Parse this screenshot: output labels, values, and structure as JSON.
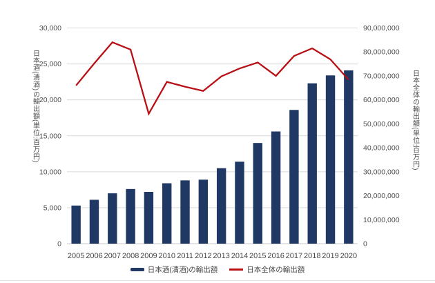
{
  "chart_data": {
    "type": "combo",
    "categories": [
      "2005",
      "2006",
      "2007",
      "2008",
      "2009",
      "2010",
      "2011",
      "2012",
      "2013",
      "2014",
      "2015",
      "2016",
      "2017",
      "2018",
      "2019",
      "2020"
    ],
    "series": [
      {
        "name": "日本酒(清酒)の輸出額",
        "type": "bar",
        "axis": "left",
        "color": "#1F3864",
        "values": [
          5300,
          6100,
          7000,
          7600,
          7200,
          8400,
          8800,
          8900,
          10500,
          11400,
          14000,
          15600,
          18600,
          22300,
          23400,
          24100
        ]
      },
      {
        "name": "日本全体の輸出額",
        "type": "line",
        "axis": "right",
        "color": "#B80F15",
        "values": [
          66000000,
          75200000,
          84000000,
          81000000,
          54200000,
          67500000,
          65500000,
          63700000,
          69800000,
          73100000,
          75600000,
          70000000,
          78300000,
          81500000,
          76900000,
          68400000
        ]
      }
    ],
    "left_axis": {
      "label": "日本酒(清酒)の輸出額(単位:百万円)",
      "min": 0,
      "max": 30000,
      "step": 5000
    },
    "right_axis": {
      "label": "日本全体の輸出額(単位:百万円)",
      "min": 0,
      "max": 90000000,
      "step": 10000000
    },
    "grid": true,
    "legend_position": "bottom",
    "colors": {
      "gridline": "#d9d9d9",
      "baseline": "#c9c9c9",
      "tick_text": "#4d4d4d"
    }
  }
}
